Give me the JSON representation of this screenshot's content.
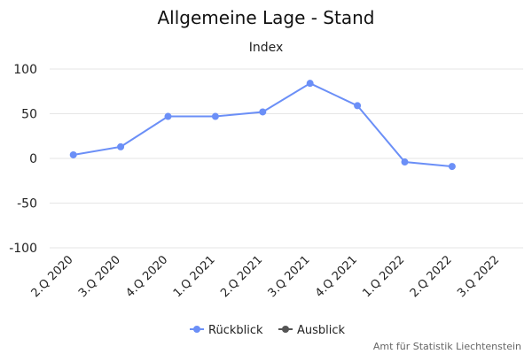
{
  "chart_data": {
    "type": "line",
    "title": "Allgemeine Lage - Stand",
    "subtitle": "Index",
    "categories": [
      "2.Q 2020",
      "3.Q 2020",
      "4.Q 2020",
      "1.Q 2021",
      "2.Q 2021",
      "3.Q 2021",
      "4.Q 2021",
      "1.Q 2022",
      "2.Q 2022",
      "3.Q 2022"
    ],
    "yticks": [
      "100",
      "50",
      "0",
      "-50",
      "-100"
    ],
    "ylim": [
      -100,
      100
    ],
    "grid": true,
    "legend_position": "bottom-center",
    "series": [
      {
        "name": "Rückblick",
        "color": "#6b8ff7",
        "values": [
          4,
          13,
          47,
          47,
          52,
          84,
          59,
          -4,
          -9,
          null
        ]
      },
      {
        "name": "Ausblick",
        "color": "#555555",
        "values": [
          null,
          null,
          null,
          null,
          null,
          null,
          null,
          null,
          null,
          null
        ]
      }
    ]
  },
  "credits": "Amt für Statistik Liechtenstein"
}
